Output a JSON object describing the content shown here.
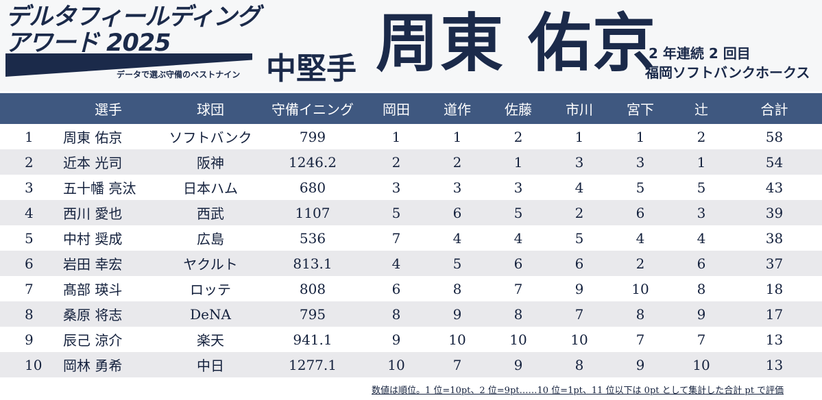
{
  "logo": {
    "title": "デルタフィールディング\nアワード 2025",
    "subtitle": "データで選ぶ守備のベストナイン"
  },
  "award": {
    "position": "中堅手",
    "winner": "周東 佑京",
    "consecutive": "2 年連続 2 回目",
    "team": "福岡ソフトバンクホークス"
  },
  "table": {
    "headers": [
      "",
      "選手",
      "球団",
      "守備イニング",
      "岡田",
      "道作",
      "佐藤",
      "市川",
      "宮下",
      "辻",
      "合計"
    ],
    "rows": [
      [
        "1",
        "周東 佑京",
        "ソフトバンク",
        "799",
        "1",
        "1",
        "2",
        "1",
        "1",
        "2",
        "58"
      ],
      [
        "2",
        "近本 光司",
        "阪神",
        "1246.2",
        "2",
        "2",
        "1",
        "3",
        "3",
        "1",
        "54"
      ],
      [
        "3",
        "五十幡 亮汰",
        "日本ハム",
        "680",
        "3",
        "3",
        "3",
        "4",
        "5",
        "5",
        "43"
      ],
      [
        "4",
        "西川 愛也",
        "西武",
        "1107",
        "5",
        "6",
        "5",
        "2",
        "6",
        "3",
        "39"
      ],
      [
        "5",
        "中村 奨成",
        "広島",
        "536",
        "7",
        "4",
        "4",
        "5",
        "4",
        "4",
        "38"
      ],
      [
        "6",
        "岩田 幸宏",
        "ヤクルト",
        "813.1",
        "4",
        "5",
        "6",
        "6",
        "2",
        "6",
        "37"
      ],
      [
        "7",
        "髙部 瑛斗",
        "ロッテ",
        "808",
        "6",
        "8",
        "7",
        "9",
        "10",
        "8",
        "18"
      ],
      [
        "8",
        "桑原 将志",
        "DeNA",
        "795",
        "8",
        "9",
        "8",
        "7",
        "8",
        "9",
        "17"
      ],
      [
        "9",
        "辰己 涼介",
        "楽天",
        "941.1",
        "9",
        "10",
        "10",
        "10",
        "7",
        "7",
        "13"
      ],
      [
        "10",
        "岡林 勇希",
        "中日",
        "1277.1",
        "10",
        "7",
        "9",
        "8",
        "9",
        "10",
        "13"
      ]
    ]
  },
  "footnote": "数値は順位。1 位=10pt、2 位=9pt……10 位=1pt、11 位以下は 0pt として集計した合計 pt で評価"
}
